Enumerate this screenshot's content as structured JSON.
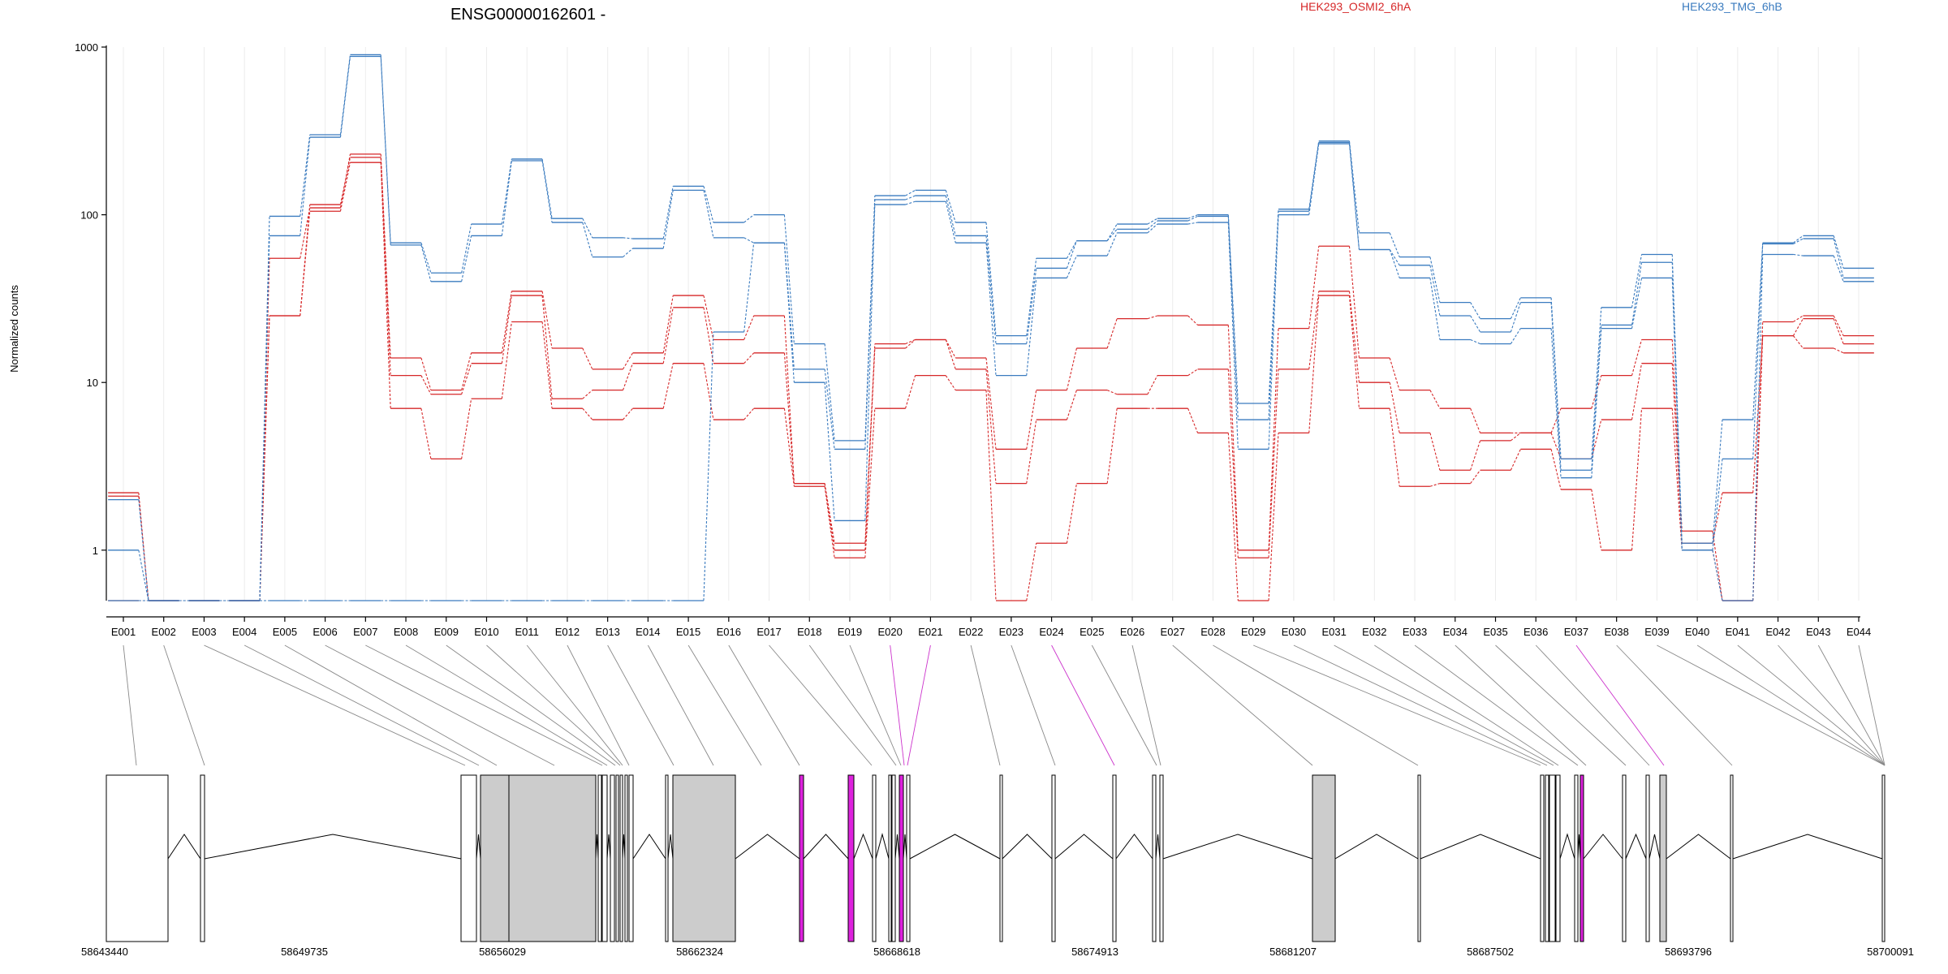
{
  "chart_data": {
    "type": "line",
    "title": "ENSG00000162601 -",
    "ylabel": "Normalized counts",
    "yscale": "log",
    "ylim": [
      0.5,
      1000
    ],
    "yticks": [
      "1",
      "10",
      "100",
      "1000"
    ],
    "grid": "vertical",
    "legend_placement": "top",
    "categories": [
      "E001",
      "E002",
      "E003",
      "E004",
      "E005",
      "E006",
      "E007",
      "E008",
      "E009",
      "E010",
      "E011",
      "E012",
      "E013",
      "E014",
      "E015",
      "E016",
      "E017",
      "E018",
      "E019",
      "E020",
      "E021",
      "E022",
      "E023",
      "E024",
      "E025",
      "E026",
      "E027",
      "E028",
      "E029",
      "E030",
      "E031",
      "E032",
      "E033",
      "E034",
      "E035",
      "E036",
      "E037",
      "E038",
      "E039",
      "E040",
      "E041",
      "E042",
      "E043",
      "E044"
    ],
    "series": [
      {
        "name": "HEK293_OSMI2_6hA",
        "color": "#d62728",
        "values": [
          2.2,
          0.5,
          0.5,
          0.5,
          55,
          110,
          230,
          14,
          9,
          15,
          35,
          16,
          12,
          15,
          33,
          18,
          25,
          2.5,
          1.1,
          17,
          18,
          14,
          4,
          9,
          16,
          24,
          25,
          22,
          1,
          21,
          65,
          14,
          9,
          7,
          5,
          5,
          7,
          11,
          18,
          1.3,
          0.5,
          23,
          25,
          19
        ]
      },
      {
        "name": "HEK293_OSMI2_6hA",
        "color": "#d62728",
        "values": [
          2.1,
          0.5,
          0.5,
          0.5,
          25,
          115,
          220,
          11,
          8.5,
          13,
          33,
          8,
          9,
          13,
          28,
          13,
          15,
          2.5,
          1,
          16,
          18,
          12,
          2.5,
          6,
          9,
          8.5,
          11,
          12,
          0.9,
          12,
          35,
          10,
          5,
          3,
          4.5,
          5,
          3.5,
          6,
          13,
          1.1,
          2.2,
          19,
          24,
          17
        ]
      },
      {
        "name": "HEK293_OSMI2_6hA",
        "color": "#d62728",
        "values": [
          0.5,
          0.5,
          0.5,
          0.5,
          25,
          105,
          205,
          7,
          3.5,
          8,
          23,
          7,
          6,
          7,
          13,
          6,
          7,
          2.4,
          0.9,
          7,
          11,
          9,
          0.5,
          1.1,
          2.5,
          7,
          7,
          5,
          0.5,
          5,
          33,
          7,
          2.4,
          2.5,
          3,
          4,
          2.3,
          1,
          7,
          1,
          0.5,
          19,
          16,
          15
        ]
      },
      {
        "name": "HEK293_TMG_6hB",
        "color": "#3a7bbf",
        "values": [
          2,
          0.5,
          0.5,
          0.5,
          98,
          300,
          900,
          68,
          45,
          88,
          215,
          95,
          73,
          72,
          148,
          90,
          100,
          17,
          4.5,
          130,
          140,
          90,
          19,
          55,
          70,
          88,
          95,
          100,
          7.5,
          108,
          275,
          78,
          56,
          30,
          24,
          32,
          3.5,
          28,
          58,
          1.1,
          6,
          68,
          75,
          48
        ]
      },
      {
        "name": "HEK293_TMG_6hB",
        "color": "#3a7bbf",
        "values": [
          1,
          0.5,
          0.5,
          0.5,
          75,
          290,
          880,
          66,
          40,
          75,
          210,
          90,
          56,
          63,
          140,
          73,
          68,
          12,
          4,
          123,
          130,
          75,
          17,
          48,
          70,
          82,
          92,
          98,
          6,
          105,
          270,
          62,
          50,
          25,
          20,
          30,
          3,
          22,
          52,
          1,
          3.5,
          67,
          72,
          42
        ]
      },
      {
        "name": "HEK293_TMG_6hB",
        "color": "#3a7bbf",
        "values": [
          0.5,
          0.5,
          0.5,
          0.5,
          0.5,
          0.5,
          0.5,
          0.5,
          0.5,
          0.5,
          0.5,
          0.5,
          0.5,
          0.5,
          0.5,
          20,
          68,
          10,
          1.5,
          115,
          120,
          68,
          11,
          42,
          57,
          78,
          88,
          90,
          4,
          100,
          265,
          62,
          42,
          18,
          17,
          21,
          2.7,
          21,
          42,
          1,
          0.5,
          58,
          57,
          40
        ]
      }
    ],
    "genome": {
      "x_tick_labels": [
        "58643440",
        "58649735",
        "58656029",
        "58662324",
        "58668618",
        "58674913",
        "58681207",
        "58687502",
        "58693796",
        "58700091"
      ]
    }
  }
}
